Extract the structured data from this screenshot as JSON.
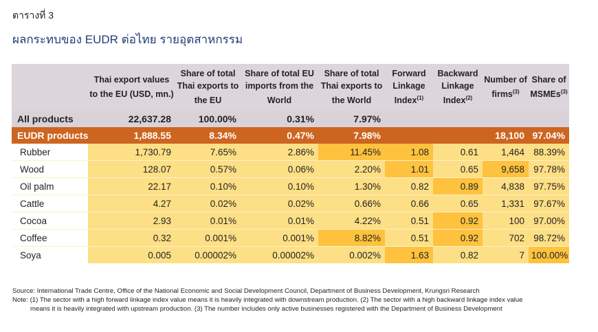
{
  "page": {
    "label": "ตารางที่ 3",
    "title": "ผลกระทบของ EUDR ต่อไทย รายอุตสาหกรรม"
  },
  "table": {
    "headers": [
      {
        "text": "",
        "sup": ""
      },
      {
        "text": "Thai export values to the EU (USD, mn.)",
        "sup": ""
      },
      {
        "text": "Share of total Thai exports to the EU",
        "sup": ""
      },
      {
        "text": "Share of total EU imports from the World",
        "sup": ""
      },
      {
        "text": "Share of total Thai exports to the World",
        "sup": ""
      },
      {
        "text": "Forward Linkage Index",
        "sup": "(1)"
      },
      {
        "text": "Backward Linkage Index",
        "sup": "(2)"
      },
      {
        "text": "Number of firms",
        "sup": "(3)"
      },
      {
        "text": "Share of MSMEs",
        "sup": "(3)"
      }
    ],
    "summary_rows": [
      {
        "type": "all",
        "cells": [
          "All products",
          "22,637.28",
          "100.00%",
          "0.31%",
          "7.97%",
          "",
          "",
          "",
          ""
        ]
      },
      {
        "type": "eudr",
        "cells": [
          "EUDR products",
          "1,888.55",
          "8.34%",
          "0.47%",
          "7.98%",
          "",
          "",
          "18,100",
          "97.04%"
        ]
      }
    ],
    "rows": [
      {
        "cells": [
          "Rubber",
          "1,730.79",
          "7.65%",
          "2.86%",
          "11.45%",
          "1.08",
          "0.61",
          "1,464",
          "88.39%"
        ],
        "hi": [
          4,
          5
        ]
      },
      {
        "cells": [
          "Wood",
          "128.07",
          "0.57%",
          "0.06%",
          "2.20%",
          "1.01",
          "0.65",
          "9,658",
          "97.78%"
        ],
        "hi": [
          5,
          7
        ]
      },
      {
        "cells": [
          "Oil palm",
          "22.17",
          "0.10%",
          "0.10%",
          "1.30%",
          "0.82",
          "0.89",
          "4,838",
          "97.75%"
        ],
        "hi": [
          6
        ]
      },
      {
        "cells": [
          "Cattle",
          "4.27",
          "0.02%",
          "0.02%",
          "0.66%",
          "0.66",
          "0.65",
          "1,331",
          "97.67%"
        ],
        "hi": []
      },
      {
        "cells": [
          "Cocoa",
          "2.93",
          "0.01%",
          "0.01%",
          "4.22%",
          "0.51",
          "0.92",
          "100",
          "97.00%"
        ],
        "hi": [
          6
        ]
      },
      {
        "cells": [
          "Coffee",
          "0.32",
          "0.001%",
          "0.001%",
          "8.82%",
          "0.51",
          "0.92",
          "702",
          "98.72%"
        ],
        "hi": [
          4,
          6
        ]
      },
      {
        "cells": [
          "Soya",
          "0.005",
          "0.00002%",
          "0.00002%",
          "0.002%",
          "1.63",
          "0.82",
          "7",
          "100.00%"
        ],
        "hi": [
          5,
          8
        ]
      }
    ]
  },
  "source": {
    "line1": "Source: International Trade Centre, Office of the National Economic and Social Development Council, Department of Business Development, Krungsri Research",
    "line2": "Note: (1) The sector with a high forward linkage index value means it is heavily integrated with downstream production. (2) The sector with a high backward linkage index value",
    "line3": "means it is heavily integrated with upstream production. (3) The number includes only active businesses registered with the Department of Business Development"
  }
}
